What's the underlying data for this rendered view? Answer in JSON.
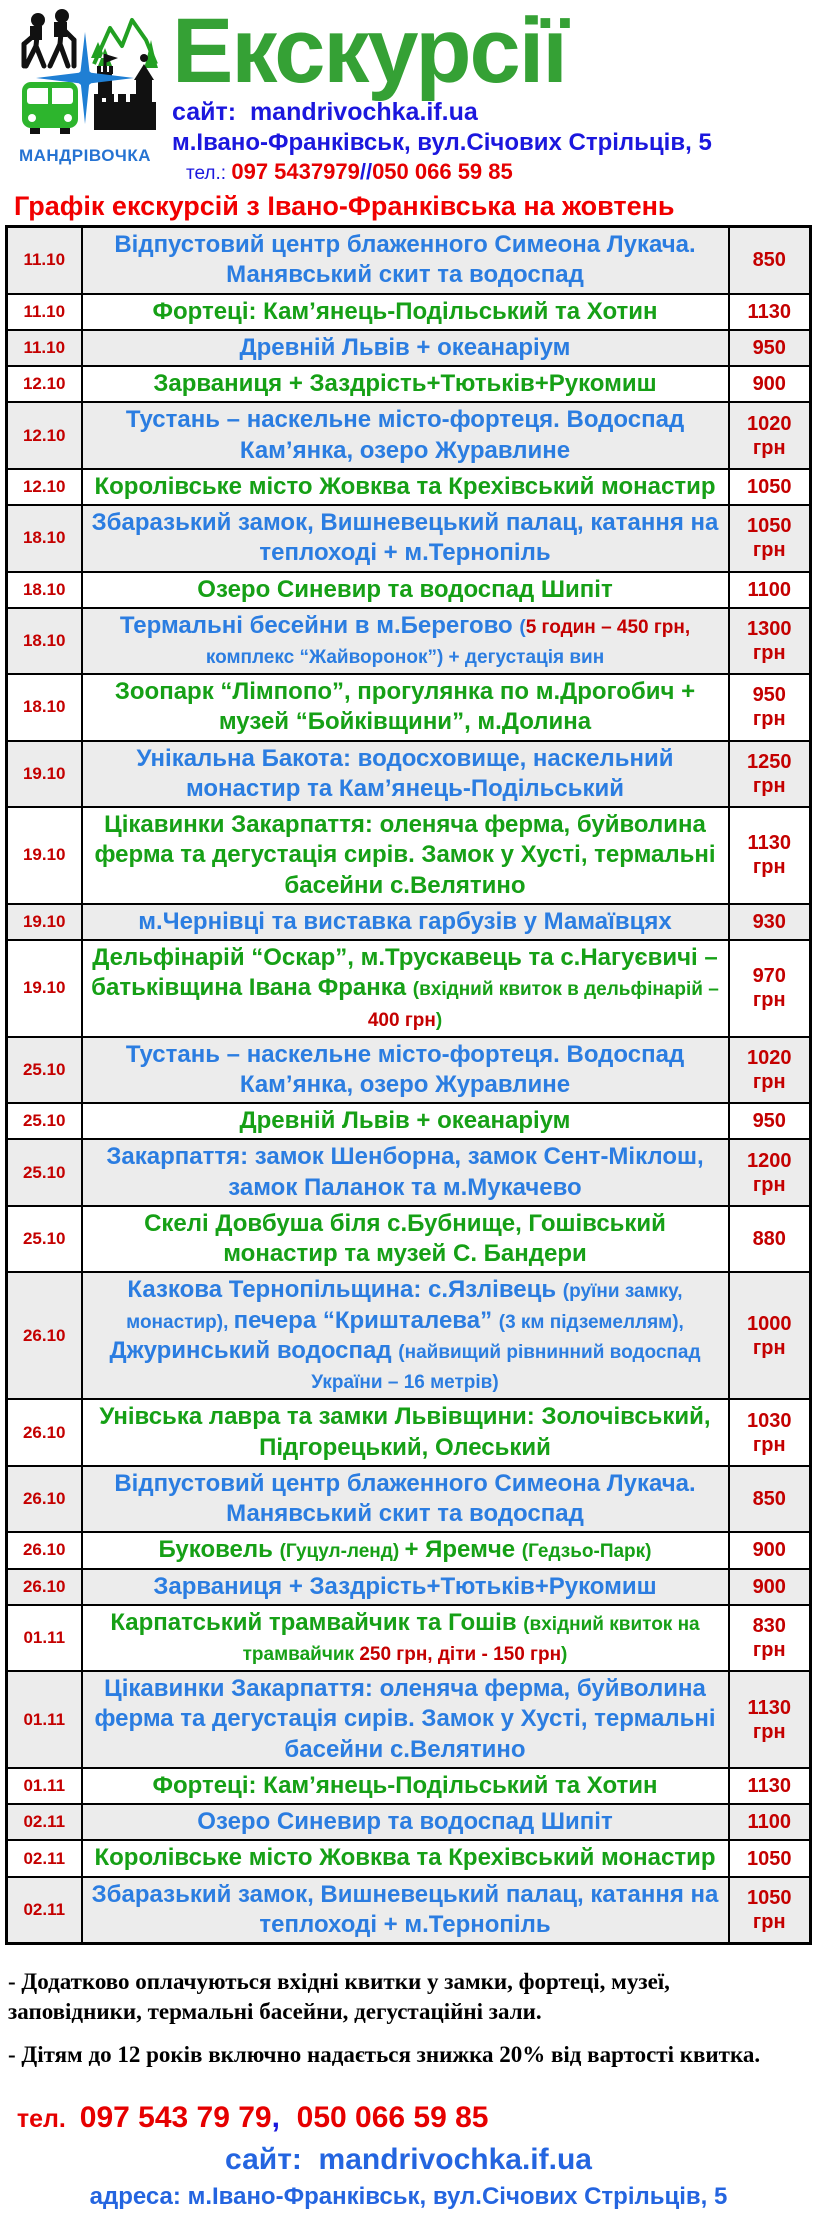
{
  "header": {
    "brand": "МАНДРІВОЧКА",
    "title": "Екскурсії",
    "site_line": "сайт:  mandrivochka.if.ua",
    "address_line": "м.Івано-Франківськ, вул.Січових Стрільців, 5",
    "tel_label": "тел.: ",
    "tel1": "097 5437979",
    "tel_sep": "//",
    "tel2": "050 066 59 85"
  },
  "table": {
    "heading": "Графік екскурсій з Івано-Франківська на жовтень",
    "rows": [
      {
        "date": "11.10",
        "color": "blue",
        "price": "850",
        "currency": "",
        "segments": [
          {
            "t": "Відпустовий центр блаженного Симеона Лукача. Манявський скит та водоспад"
          }
        ]
      },
      {
        "date": "11.10",
        "color": "green",
        "price": "1130",
        "currency": "",
        "segments": [
          {
            "t": "Фортеці: Кам’янець-Подільський та Хотин"
          }
        ]
      },
      {
        "date": "11.10",
        "color": "blue",
        "price": "950",
        "currency": "",
        "segments": [
          {
            "t": "Древній Львів + океанаріум"
          }
        ]
      },
      {
        "date": "12.10",
        "color": "green",
        "price": "900",
        "currency": "",
        "segments": [
          {
            "t": "Зарваниця + Заздрість+Тютьків+Рукомиш"
          }
        ]
      },
      {
        "date": "12.10",
        "color": "blue",
        "price": "1020",
        "currency": "грн",
        "segments": [
          {
            "t": "Тустань – наскельне місто-фортеця. Водоспад Кам’янка, озеро Журавлине"
          }
        ]
      },
      {
        "date": "12.10",
        "color": "green",
        "price": "1050",
        "currency": "",
        "segments": [
          {
            "t": "Королівське місто Жовква та Крехівський монастир"
          }
        ]
      },
      {
        "date": "18.10",
        "color": "blue",
        "price": "1050",
        "currency": "грн",
        "segments": [
          {
            "t": "Збаразький замок, Вишневецький палац, катання на теплоході + м.Тернопіль"
          }
        ]
      },
      {
        "date": "18.10",
        "color": "green",
        "price": "1100",
        "currency": "",
        "segments": [
          {
            "t": "Озеро Синевир та водоспад Шипіт"
          }
        ]
      },
      {
        "date": "18.10",
        "color": "blue",
        "price": "1300",
        "currency": "грн",
        "segments": [
          {
            "t": "Термальні бесейни в м.Берегово "
          },
          {
            "t": "(",
            "small": true
          },
          {
            "t": "5 годин – 450 грн,",
            "small": true,
            "red": true
          },
          {
            "t": " комплекс “Жайворонок”) + дегустація вин",
            "small": true
          }
        ]
      },
      {
        "date": "18.10",
        "color": "green",
        "price": "950",
        "currency": "грн",
        "segments": [
          {
            "t": "Зоопарк “Лімпопо”, прогулянка по м.Дрогобич + музей “Бойківщини”, м.Долина"
          }
        ]
      },
      {
        "date": "19.10",
        "color": "blue",
        "price": "1250",
        "currency": "грн",
        "segments": [
          {
            "t": "Унікальна Бакота: водосховище, наскельний монастир та Кам’янець-Подільський"
          }
        ]
      },
      {
        "date": "19.10",
        "color": "green",
        "price": "1130",
        "currency": "грн",
        "segments": [
          {
            "t": "Цікавинки Закарпаття: оленяча ферма, буйволина ферма та дегустація сирів. Замок у Хусті, термальні басейни с.Велятино"
          }
        ]
      },
      {
        "date": "19.10",
        "color": "blue",
        "price": "930",
        "currency": "",
        "segments": [
          {
            "t": "м.Чернівці та виставка гарбузів у Мамаївцях"
          }
        ]
      },
      {
        "date": "19.10",
        "color": "green",
        "price": "970",
        "currency": "грн",
        "segments": [
          {
            "t": "Дельфінарій “Оскар”, м.Трускавець та с.Нагуєвичі – батьківщина Івана Франка "
          },
          {
            "t": "(вхідний квиток в дельфінарій – ",
            "small": true
          },
          {
            "t": "400 грн",
            "small": true,
            "red": true
          },
          {
            "t": ")",
            "small": true
          }
        ]
      },
      {
        "date": "25.10",
        "color": "blue",
        "price": "1020",
        "currency": "грн",
        "segments": [
          {
            "t": "Тустань – наскельне місто-фортеця. Водоспад Кам’янка, озеро Журавлине"
          }
        ]
      },
      {
        "date": "25.10",
        "color": "green",
        "price": "950",
        "currency": "",
        "segments": [
          {
            "t": "Древній Львів + океанаріум"
          }
        ]
      },
      {
        "date": "25.10",
        "color": "blue",
        "price": "1200",
        "currency": "грн",
        "segments": [
          {
            "t": "Закарпаття: замок Шенборна, замок Сент-Міклош, замок Паланок та м.Мукачево"
          }
        ]
      },
      {
        "date": "25.10",
        "color": "green",
        "price": "880",
        "currency": "",
        "segments": [
          {
            "t": "Скелі Довбуша біля с.Бубнище, Гошівський монастир та музей С. Бандери"
          }
        ]
      },
      {
        "date": "26.10",
        "color": "blue",
        "price": "1000",
        "currency": "грн",
        "segments": [
          {
            "t": "Казкова Тернопільщина: с.Язлівець "
          },
          {
            "t": "(руїни замку, монастир), ",
            "small": true
          },
          {
            "t": "печера “Кришталева” "
          },
          {
            "t": "(3 км підземеллям), ",
            "small": true
          },
          {
            "t": "Джуринський водоспад "
          },
          {
            "t": "(найвищий рівнинний водоспад України – 16 метрів)",
            "small": true
          }
        ]
      },
      {
        "date": "26.10",
        "color": "green",
        "price": "1030",
        "currency": "грн",
        "segments": [
          {
            "t": "Унівська лавра та замки Львівщини: Золочівський, Підгорецький, Олеський"
          }
        ]
      },
      {
        "date": "26.10",
        "color": "blue",
        "price": "850",
        "currency": "",
        "segments": [
          {
            "t": "Відпустовий центр блаженного Симеона Лукача. Манявський скит та водоспад"
          }
        ]
      },
      {
        "date": "26.10",
        "color": "green",
        "price": "900",
        "currency": "",
        "segments": [
          {
            "t": "Буковель "
          },
          {
            "t": "(Гуцул-ленд) ",
            "small": true
          },
          {
            "t": "+ Яремче "
          },
          {
            "t": "(Гедзьо-Парк)",
            "small": true
          }
        ]
      },
      {
        "date": "26.10",
        "color": "blue",
        "price": "900",
        "currency": "",
        "segments": [
          {
            "t": "Зарваниця + Заздрість+Тютьків+Рукомиш"
          }
        ]
      },
      {
        "date": "01.11",
        "color": "green",
        "price": "830",
        "currency": "грн",
        "segments": [
          {
            "t": "Карпатський трамвайчик та Гошів "
          },
          {
            "t": "(вхідний квиток на трамвайчик ",
            "small": true
          },
          {
            "t": "250 грн, діти - 150 грн",
            "small": true,
            "red": true
          },
          {
            "t": ")",
            "small": true
          }
        ]
      },
      {
        "date": "01.11",
        "color": "blue",
        "price": "1130",
        "currency": "грн",
        "segments": [
          {
            "t": "Цікавинки Закарпаття: оленяча ферма, буйволина ферма та дегустація сирів. Замок у Хусті, термальні басейни с.Велятино"
          }
        ]
      },
      {
        "date": "01.11",
        "color": "green",
        "price": "1130",
        "currency": "",
        "segments": [
          {
            "t": "Фортеці: Кам’янець-Подільський та Хотин"
          }
        ]
      },
      {
        "date": "02.11",
        "color": "blue",
        "price": "1100",
        "currency": "",
        "segments": [
          {
            "t": "Озеро Синевир та водоспад Шипіт"
          }
        ]
      },
      {
        "date": "02.11",
        "color": "green",
        "price": "1050",
        "currency": "",
        "segments": [
          {
            "t": "Королівське місто Жовква та Крехівський монастир"
          }
        ]
      },
      {
        "date": "02.11",
        "color": "blue",
        "price": "1050",
        "currency": "грн",
        "segments": [
          {
            "t": "Збаразький замок, Вишневецький палац, катання на теплоході + м.Тернопіль"
          }
        ]
      }
    ]
  },
  "footer": {
    "note1": "- Додатково оплачуються вхідні квитки у замки, фортеці, музеї, заповідники, термальні басейни, дегустаційні зали.",
    "note2": "- Дітям до 12 років включно надається знижка 20% від вартості квитка.",
    "tel_label": "тел.  ",
    "tel1": "097 543 79 79",
    "tel_sep": ",  ",
    "tel2": "050 066 59 85",
    "site_line": "сайт:  mandrivochka.if.ua",
    "address_line": "адреса: м.Івано-Франківськ, вул.Січових Стрільців, 5"
  },
  "colors": {
    "tour_blue": "#2b7de1",
    "tour_green": "#16a016",
    "date_price_red": "#c40000",
    "heading_red": "#f10000",
    "header_deep_blue": "#1b17de",
    "footer_blue": "#2465e0",
    "phone_red": "#e60000",
    "title_green": "#35a135",
    "logo_blue": "#1f7fd4",
    "row_alt_gray": "#ececec"
  },
  "icons": {
    "logo": [
      "hikers-icon",
      "mountains-icon",
      "bus-icon",
      "castle-icon",
      "compass-cross-icon"
    ]
  }
}
